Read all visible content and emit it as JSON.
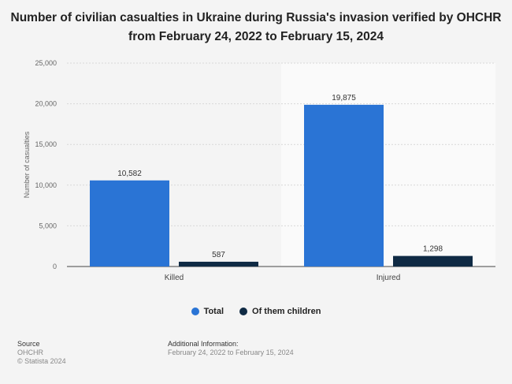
{
  "title_line1": "Number of civilian casualties in Ukraine during Russia's invasion verified by OHCHR",
  "title_line2": "from February 24, 2022 to February 15, 2024",
  "colors": {
    "total": "#2a74d5",
    "children": "#0f2a44",
    "grid": "#d8d8d8",
    "highlight": "#fafafa"
  },
  "legend": {
    "total": "Total",
    "children": "Of them children"
  },
  "footer": {
    "source_heading": "Source",
    "source_name": "OHCHR",
    "copyright": "© Statista 2024",
    "additional_heading": "Additional Information:",
    "additional_text": "February 24, 2022 to February 15, 2024"
  },
  "chart_data": {
    "type": "bar",
    "categories": [
      "Killed",
      "Injured"
    ],
    "series": [
      {
        "name": "Total",
        "values": [
          10582,
          19875
        ],
        "labels": [
          "10,582",
          "19,875"
        ]
      },
      {
        "name": "Of them children",
        "values": [
          587,
          1298
        ],
        "labels": [
          "587",
          "1,298"
        ]
      }
    ],
    "ylabel": "Number of casualties",
    "ylim": [
      0,
      25000
    ],
    "yticks": [
      0,
      5000,
      10000,
      15000,
      20000,
      25000
    ],
    "ytick_labels": [
      "0",
      "5,000",
      "10,000",
      "15,000",
      "20,000",
      "25,000"
    ],
    "grid": true,
    "legend_position": "bottom-center"
  }
}
